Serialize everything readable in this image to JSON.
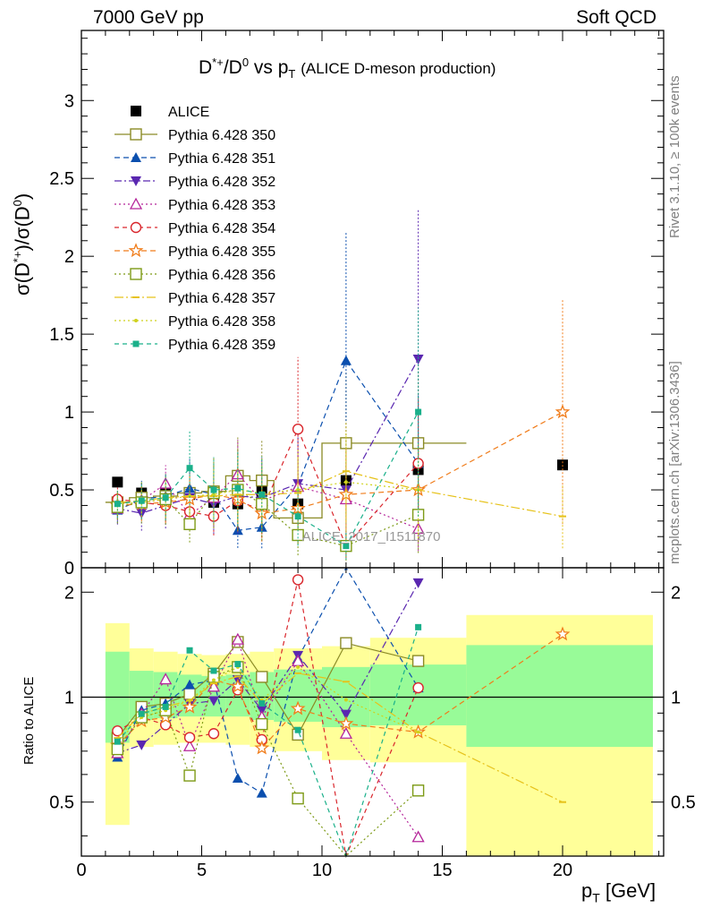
{
  "header": {
    "left": "7000 GeV pp",
    "right": "Soft QCD"
  },
  "side_labels": {
    "rivet": "Rivet 3.1.10, ≥ 100k events",
    "mcplots": "mcplots.cern.ch [arXiv:1306.3436]"
  },
  "chart_data": {
    "type": "scatter",
    "title": "D*+/D0 vs pT (ALICE D-meson production)",
    "xlabel": "pT [GeV]",
    "ylabel": "σ(D*+)/σ(D0)",
    "ratio_ylabel": "Ratio to ALICE",
    "watermark": "ALICE_2017_I1511870",
    "xlim": [
      0,
      24.2
    ],
    "ylim": [
      0,
      3.45
    ],
    "ratio_ylim": [
      0.35,
      2.35
    ],
    "x_ticks": [
      "0",
      "5",
      "10",
      "15",
      "20"
    ],
    "y_ticks": [
      "0",
      "0.5",
      "1",
      "1.5",
      "2",
      "2.5",
      "3"
    ],
    "ratio_ticks": [
      "0.5",
      "1",
      "2"
    ],
    "legend_position": "top-left",
    "grid": false,
    "x": [
      1.5,
      2.5,
      3.5,
      4.5,
      5.5,
      6.5,
      7.5,
      9,
      11,
      14,
      20
    ],
    "series": [
      {
        "name": "ALICE",
        "color": "#000000",
        "marker": "square-filled",
        "dash": "none",
        "bins": null,
        "values": [
          0.55,
          0.48,
          0.48,
          0.47,
          0.42,
          0.41,
          0.49,
          0.41,
          0.56,
          0.63,
          0.66
        ]
      },
      {
        "name": "Pythia 6.428 350",
        "color": "#8b8b26",
        "marker": "square-open",
        "dash": "solid",
        "bins": [
          [
            1,
            2
          ],
          [
            2,
            3
          ],
          [
            3,
            4
          ],
          [
            4,
            5
          ],
          [
            5,
            6
          ],
          [
            6,
            7
          ],
          [
            7,
            8
          ],
          [
            8,
            10
          ],
          [
            10,
            12
          ],
          [
            12,
            16
          ]
        ],
        "values": [
          0.42,
          0.45,
          0.46,
          0.48,
          0.49,
          0.59,
          0.56,
          0.32,
          0.8,
          0.8
        ]
      },
      {
        "name": "Pythia 6.428 351",
        "color": "#0b4fae",
        "marker": "triangle-up-filled",
        "dash": "6,4",
        "values": [
          0.37,
          0.44,
          0.46,
          0.51,
          0.47,
          0.24,
          0.26,
          0.53,
          1.33,
          0.67
        ]
      },
      {
        "name": "Pythia 6.428 352",
        "color": "#5a27b0",
        "marker": "triangle-down-filled",
        "dash": "8,3,2,3",
        "values": [
          0.38,
          0.35,
          0.4,
          0.45,
          0.41,
          0.46,
          0.45,
          0.54,
          0.5,
          1.34
        ]
      },
      {
        "name": "Pythia 6.428 353",
        "color": "#b5259a",
        "marker": "triangle-up-open",
        "dash": "2,3",
        "values": [
          0.38,
          0.43,
          0.54,
          0.34,
          0.45,
          0.6,
          0.43,
          0.52,
          0.44,
          0.25
        ]
      },
      {
        "name": "Pythia 6.428 354",
        "color": "#d9262c",
        "marker": "circle-open",
        "dash": "5,4",
        "values": [
          0.44,
          0.42,
          0.4,
          0.36,
          0.33,
          0.43,
          0.37,
          0.89,
          0.14,
          0.67
        ]
      },
      {
        "name": "Pythia 6.428 355",
        "color": "#f07c1a",
        "marker": "star-open",
        "dash": "6,4",
        "x": [
          1.5,
          2.5,
          3.5,
          4.5,
          5.5,
          6.5,
          7.5,
          9,
          11,
          14,
          20
        ],
        "values": [
          0.4,
          0.41,
          0.42,
          0.44,
          0.47,
          0.44,
          0.35,
          0.38,
          0.47,
          0.5,
          1.0
        ]
      },
      {
        "name": "Pythia 6.428 356",
        "color": "#7d9a16",
        "marker": "square-open",
        "dash": "2,3",
        "values": [
          0.39,
          0.42,
          0.44,
          0.28,
          0.48,
          0.5,
          0.41,
          0.21,
          0.14,
          0.34
        ]
      },
      {
        "name": "Pythia 6.428 357",
        "color": "#e6c21a",
        "marker": "tick",
        "dash": "10,3,2,3",
        "x": [
          1.5,
          2.5,
          3.5,
          4.5,
          5.5,
          6.5,
          7.5,
          9,
          11,
          14,
          20
        ],
        "values": [
          0.42,
          0.43,
          0.45,
          0.46,
          0.46,
          0.47,
          0.47,
          0.48,
          0.62,
          0.5,
          0.33
        ]
      },
      {
        "name": "Pythia 6.428 358",
        "color": "#cfd21c",
        "marker": "dot",
        "dash": "2,3",
        "values": [
          0.41,
          0.42,
          0.44,
          0.46,
          0.47,
          0.5,
          0.48,
          0.5,
          0.55,
          0.5
        ]
      },
      {
        "name": "Pythia 6.428 359",
        "color": "#1ab08a",
        "marker": "square-small-filled",
        "dash": "5,4",
        "values": [
          0.41,
          0.43,
          0.45,
          0.64,
          0.5,
          0.51,
          0.47,
          0.33,
          0.14,
          1.0
        ]
      }
    ],
    "ratio": {
      "bands": [
        {
          "x": [
            1,
            2
          ],
          "yellow": [
            0.43,
            1.63
          ],
          "green": [
            0.74,
            1.35
          ]
        },
        {
          "x": [
            2,
            3
          ],
          "yellow": [
            0.72,
            1.38
          ],
          "green": [
            0.86,
            1.19
          ]
        },
        {
          "x": [
            3,
            4
          ],
          "yellow": [
            0.73,
            1.35
          ],
          "green": [
            0.87,
            1.18
          ]
        },
        {
          "x": [
            4,
            5
          ],
          "yellow": [
            0.74,
            1.33
          ],
          "green": [
            0.88,
            1.16
          ]
        },
        {
          "x": [
            5,
            6
          ],
          "yellow": [
            0.74,
            1.32
          ],
          "green": [
            0.88,
            1.15
          ]
        },
        {
          "x": [
            6,
            7
          ],
          "yellow": [
            0.73,
            1.33
          ],
          "green": [
            0.88,
            1.16
          ]
        },
        {
          "x": [
            7,
            8
          ],
          "yellow": [
            0.72,
            1.35
          ],
          "green": [
            0.86,
            1.18
          ]
        },
        {
          "x": [
            8,
            10
          ],
          "yellow": [
            0.7,
            1.38
          ],
          "green": [
            0.85,
            1.2
          ]
        },
        {
          "x": [
            10,
            12
          ],
          "yellow": [
            0.66,
            1.4
          ],
          "green": [
            0.82,
            1.22
          ]
        },
        {
          "x": [
            12,
            16
          ],
          "yellow": [
            0.65,
            1.48
          ],
          "green": [
            0.83,
            1.24
          ]
        },
        {
          "x": [
            16,
            24
          ],
          "yellow": [
            0.35,
            1.72
          ],
          "green": [
            0.72,
            1.41
          ]
        }
      ]
    }
  }
}
